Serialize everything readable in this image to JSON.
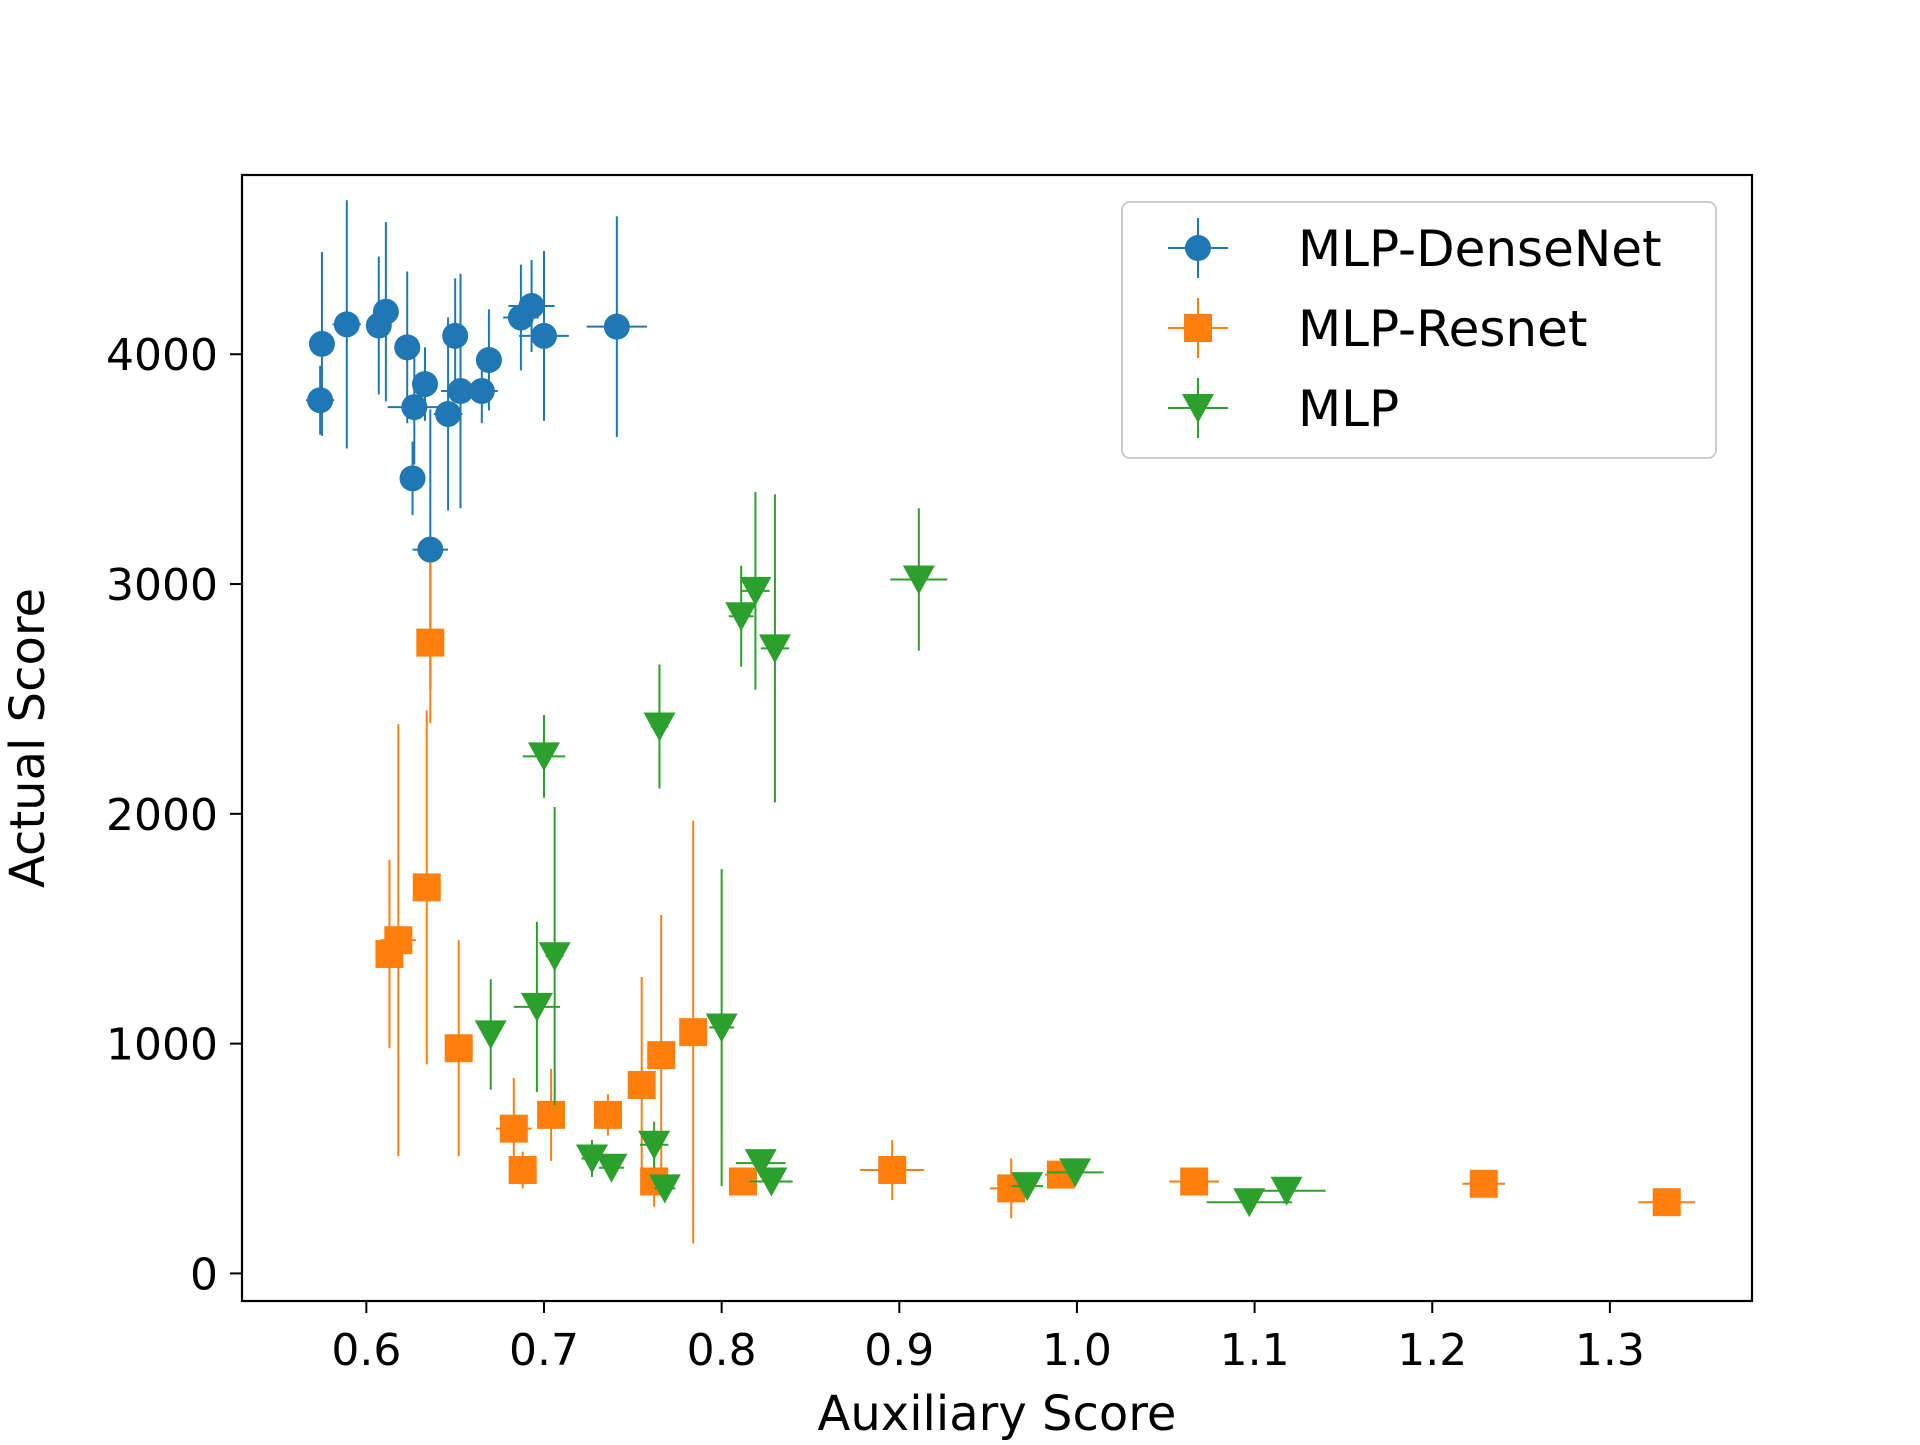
{
  "chart_data": {
    "type": "scatter",
    "error_bars": true,
    "xlabel": "Auxiliary Score",
    "ylabel": "Actual Score",
    "xlim": [
      0.53,
      1.38
    ],
    "ylim": [
      -120,
      4780
    ],
    "x_ticks": [
      0.6,
      0.7,
      0.8,
      0.9,
      1.0,
      1.1,
      1.2,
      1.3
    ],
    "x_tick_labels": [
      "0.6",
      "0.7",
      "0.8",
      "0.9",
      "1.0",
      "1.1",
      "1.2",
      "1.3"
    ],
    "y_ticks": [
      0,
      1000,
      2000,
      3000,
      4000
    ],
    "y_tick_labels": [
      "0",
      "1000",
      "2000",
      "3000",
      "4000"
    ],
    "grid": false,
    "legend_position": "top-right",
    "series": [
      {
        "name": "MLP-DenseNet",
        "color": "#1f77b4",
        "marker": "circle",
        "points": [
          {
            "x": 0.574,
            "y": 3800,
            "xerr": 0.008,
            "yerr": 150
          },
          {
            "x": 0.575,
            "y": 4045,
            "xerr": 0.006,
            "yerr": 400
          },
          {
            "x": 0.589,
            "y": 4130,
            "xerr": 0.008,
            "yerr": 540
          },
          {
            "x": 0.607,
            "y": 4125,
            "xerr": 0.007,
            "yerr": 300
          },
          {
            "x": 0.611,
            "y": 4185,
            "xerr": 0.006,
            "yerr": 390
          },
          {
            "x": 0.623,
            "y": 4030,
            "xerr": 0.006,
            "yerr": 330
          },
          {
            "x": 0.626,
            "y": 3460,
            "xerr": 0.006,
            "yerr": 160
          },
          {
            "x": 0.627,
            "y": 3770,
            "xerr": 0.015,
            "yerr": 250
          },
          {
            "x": 0.633,
            "y": 3870,
            "xerr": 0.006,
            "yerr": 160
          },
          {
            "x": 0.636,
            "y": 3150,
            "xerr": 0.01,
            "yerr": 610
          },
          {
            "x": 0.646,
            "y": 3740,
            "xerr": 0.008,
            "yerr": 420
          },
          {
            "x": 0.65,
            "y": 4080,
            "xerr": 0.007,
            "yerr": 250
          },
          {
            "x": 0.653,
            "y": 3840,
            "xerr": 0.011,
            "yerr": 510
          },
          {
            "x": 0.665,
            "y": 3840,
            "xerr": 0.009,
            "yerr": 140
          },
          {
            "x": 0.669,
            "y": 3975,
            "xerr": 0.006,
            "yerr": 220
          },
          {
            "x": 0.687,
            "y": 4160,
            "xerr": 0.01,
            "yerr": 230
          },
          {
            "x": 0.693,
            "y": 4210,
            "xerr": 0.013,
            "yerr": 200
          },
          {
            "x": 0.7,
            "y": 4080,
            "xerr": 0.014,
            "yerr": 370
          },
          {
            "x": 0.741,
            "y": 4120,
            "xerr": 0.017,
            "yerr": 480
          }
        ]
      },
      {
        "name": "MLP-Resnet",
        "color": "#ff7f0e",
        "marker": "square",
        "points": [
          {
            "x": 0.613,
            "y": 1390,
            "xerr": 0.004,
            "yerr": 410
          },
          {
            "x": 0.618,
            "y": 1450,
            "xerr": 0.01,
            "yerr": 940
          },
          {
            "x": 0.634,
            "y": 1680,
            "xerr": 0.004,
            "yerr": 770
          },
          {
            "x": 0.636,
            "y": 2745,
            "xerr": 0.004,
            "yerr": 350
          },
          {
            "x": 0.652,
            "y": 980,
            "xerr": 0.005,
            "yerr": 470
          },
          {
            "x": 0.683,
            "y": 630,
            "xerr": 0.01,
            "yerr": 220
          },
          {
            "x": 0.688,
            "y": 450,
            "xerr": 0.006,
            "yerr": 80
          },
          {
            "x": 0.704,
            "y": 690,
            "xerr": 0.005,
            "yerr": 200
          },
          {
            "x": 0.736,
            "y": 690,
            "xerr": 0.008,
            "yerr": 90
          },
          {
            "x": 0.755,
            "y": 820,
            "xerr": 0.005,
            "yerr": 470
          },
          {
            "x": 0.762,
            "y": 400,
            "xerr": 0.006,
            "yerr": 110
          },
          {
            "x": 0.766,
            "y": 950,
            "xerr": 0.005,
            "yerr": 610
          },
          {
            "x": 0.784,
            "y": 1050,
            "xerr": 0.005,
            "yerr": 920
          },
          {
            "x": 0.812,
            "y": 400,
            "xerr": 0.008,
            "yerr": 50
          },
          {
            "x": 0.896,
            "y": 450,
            "xerr": 0.018,
            "yerr": 130
          },
          {
            "x": 0.963,
            "y": 370,
            "xerr": 0.012,
            "yerr": 130
          },
          {
            "x": 0.991,
            "y": 430,
            "xerr": 0.009,
            "yerr": 40
          },
          {
            "x": 1.066,
            "y": 400,
            "xerr": 0.014,
            "yerr": 40
          },
          {
            "x": 1.229,
            "y": 390,
            "xerr": 0.012,
            "yerr": 30
          },
          {
            "x": 1.332,
            "y": 310,
            "xerr": 0.016,
            "yerr": 30
          }
        ]
      },
      {
        "name": "MLP",
        "color": "#2ca02c",
        "marker": "triangle-down",
        "points": [
          {
            "x": 0.67,
            "y": 1040,
            "xerr": 0.004,
            "yerr": 240
          },
          {
            "x": 0.696,
            "y": 1160,
            "xerr": 0.013,
            "yerr": 370
          },
          {
            "x": 0.7,
            "y": 2250,
            "xerr": 0.012,
            "yerr": 180
          },
          {
            "x": 0.706,
            "y": 1380,
            "xerr": 0.005,
            "yerr": 650
          },
          {
            "x": 0.727,
            "y": 500,
            "xerr": 0.006,
            "yerr": 80
          },
          {
            "x": 0.738,
            "y": 460,
            "xerr": 0.007,
            "yerr": 50
          },
          {
            "x": 0.762,
            "y": 560,
            "xerr": 0.008,
            "yerr": 100
          },
          {
            "x": 0.765,
            "y": 2380,
            "xerr": 0.005,
            "yerr": 270
          },
          {
            "x": 0.768,
            "y": 370,
            "xerr": 0.006,
            "yerr": 60
          },
          {
            "x": 0.8,
            "y": 1070,
            "xerr": 0.007,
            "yerr": 690
          },
          {
            "x": 0.811,
            "y": 2860,
            "xerr": 0.007,
            "yerr": 220
          },
          {
            "x": 0.819,
            "y": 2970,
            "xerr": 0.008,
            "yerr": 430
          },
          {
            "x": 0.822,
            "y": 480,
            "xerr": 0.014,
            "yerr": 40
          },
          {
            "x": 0.828,
            "y": 400,
            "xerr": 0.012,
            "yerr": 40
          },
          {
            "x": 0.83,
            "y": 2720,
            "xerr": 0.008,
            "yerr": 670
          },
          {
            "x": 0.911,
            "y": 3020,
            "xerr": 0.016,
            "yerr": 310
          },
          {
            "x": 0.972,
            "y": 380,
            "xerr": 0.009,
            "yerr": 50
          },
          {
            "x": 0.999,
            "y": 440,
            "xerr": 0.016,
            "yerr": 30
          },
          {
            "x": 1.097,
            "y": 310,
            "xerr": 0.024,
            "yerr": 30
          },
          {
            "x": 1.118,
            "y": 360,
            "xerr": 0.022,
            "yerr": 30
          }
        ]
      }
    ]
  }
}
